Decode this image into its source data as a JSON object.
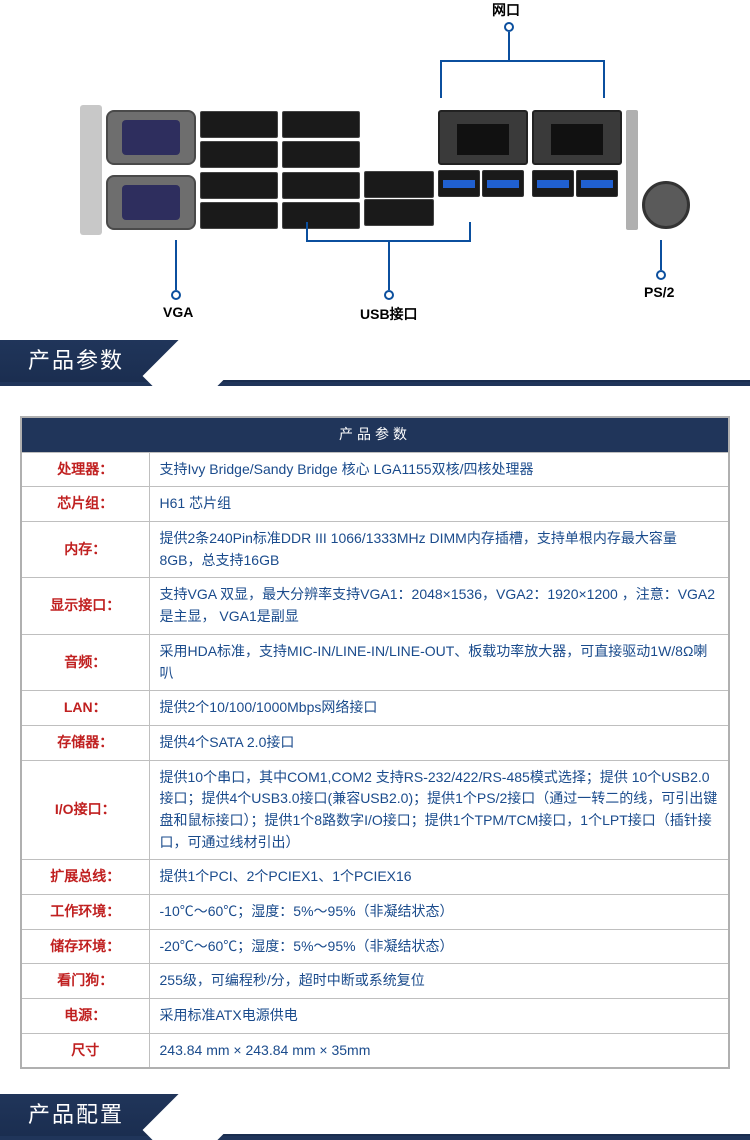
{
  "diagram": {
    "labels": {
      "top": "网口",
      "vga": "VGA",
      "usb": "USB接口",
      "ps2": "PS/2"
    },
    "colors": {
      "line": "#0b4f9e",
      "label": "#000000"
    }
  },
  "section1_title": "产品参数",
  "section2_title": "产品配置",
  "specs": {
    "table_title": "产品参数",
    "header_bg": "#20355a",
    "header_color": "#ffffff",
    "key_color": "#c02020",
    "val_color": "#1a4b8c",
    "border_color": "#bfbfbf",
    "rows": [
      {
        "k": "处理器：",
        "v": "支持Ivy Bridge/Sandy Bridge 核心 LGA1155双核/四核处理器"
      },
      {
        "k": "芯片组：",
        "v": "H61 芯片组"
      },
      {
        "k": "内存：",
        "v": "提供2条240Pin标准DDR III 1066/1333MHz  DIMM内存插槽，支持单根内存最大容量8GB，总支持16GB"
      },
      {
        "k": "显示接口：",
        "v": "支持VGA 双显，最大分辨率支持VGA1：2048×1536，VGA2：1920×1200 ，注意：VGA2是主显， VGA1是副显"
      },
      {
        "k": "音频：",
        "v": "采用HDA标准，支持MIC-IN/LINE-IN/LINE-OUT、板载功率放大器，可直接驱动1W/8Ω喇叭"
      },
      {
        "k": "LAN：",
        "v": "提供2个10/100/1000Mbps网络接口"
      },
      {
        "k": "存储器：",
        "v": "提供4个SATA 2.0接口"
      },
      {
        "k": "I/O接口：",
        "v": "提供10个串口，其中COM1,COM2 支持RS-232/422/RS-485模式选择；提供 10个USB2.0接口；提供4个USB3.0接口(兼容USB2.0)；提供1个PS/2接口（通过一转二的线，可引出键盘和鼠标接口）；提供1个8路数字I/O接口；提供1个TPM/TCM接口，1个LPT接口（插针接口，可通过线材引出）"
      },
      {
        "k": "扩展总线：",
        "v": "提供1个PCI、2个PCIEX1、1个PCIEX16"
      },
      {
        "k": "工作环境：",
        "v": "-10℃～60℃；湿度：5%～95%（非凝结状态）"
      },
      {
        "k": "储存环境：",
        "v": "-20℃～60℃；湿度：5%～95%（非凝结状态）"
      },
      {
        "k": "看门狗：",
        "v": "255级，可编程秒/分，超时中断或系统复位"
      },
      {
        "k": "电源：",
        "v": "采用标准ATX电源供电"
      },
      {
        "k": "尺寸",
        "v": "243.84 mm  ×  243.84 mm  ×  35mm"
      }
    ]
  }
}
